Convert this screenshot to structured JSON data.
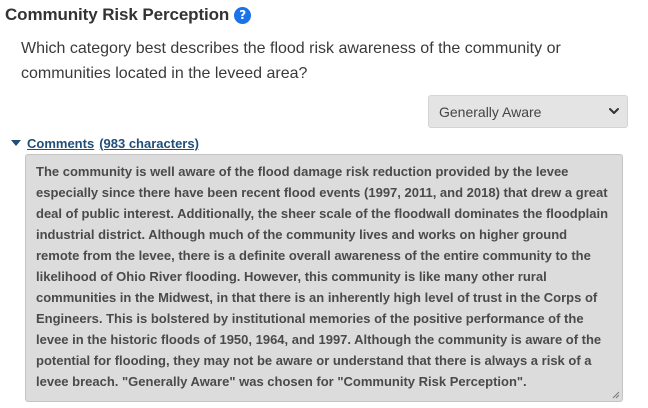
{
  "section": {
    "title": "Community Risk Perception",
    "help_icon": "question-circle-icon",
    "question": "Which category best describes the flood risk awareness of the community or communities located in the leveed area?"
  },
  "rating_select": {
    "selected": "Generally Aware"
  },
  "comments": {
    "label": "Comments",
    "count_text": "(983 characters)",
    "text": "The community is well aware of the flood damage risk reduction provided by the levee especially since there have been recent flood events (1997, 2011, and 2018) that drew a great deal of public interest. Additionally, the sheer scale of the floodwall dominates the floodplain industrial district. Although much of the community lives and works on higher ground remote from the levee, there is a definite overall awareness of the entire community to the likelihood of Ohio River flooding. However, this community is like many other rural communities in the Midwest, in that there is an inherently high level of trust in the Corps of Engineers. This is bolstered by institutional memories of the positive performance of the levee in the historic floods of 1950, 1964, and 1997. Although the community is aware of the potential for flooding, they may not be aware or understand that there is always a risk of a levee breach. \"Generally Aware\" was chosen for \"Community Risk Perception\"."
  },
  "colors": {
    "accent": "#1a73e8",
    "link": "#1f4e79",
    "textarea_bg": "#dcdcdc",
    "select_bg": "#e4e4e4"
  }
}
